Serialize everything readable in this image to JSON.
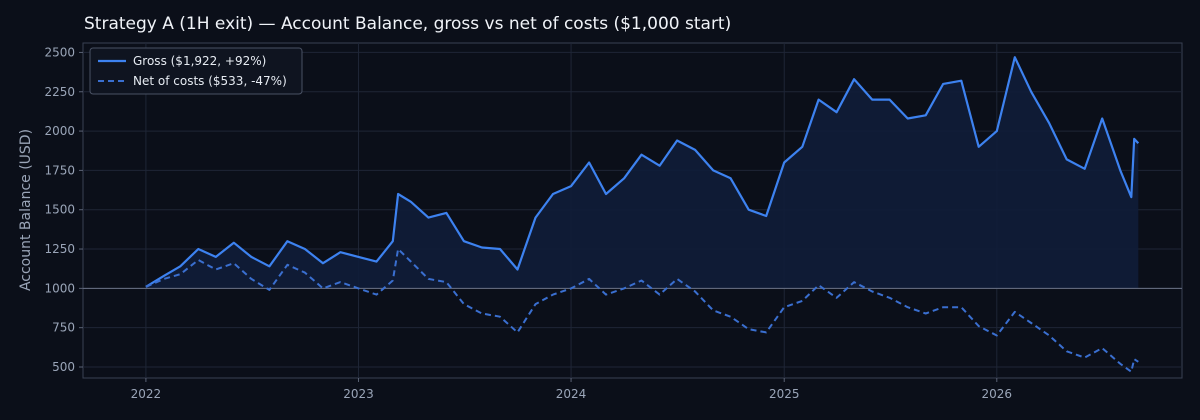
{
  "chart_data": {
    "type": "line",
    "title": "Strategy A (1H exit) — Account Balance, gross vs net of costs ($1,000 start)",
    "xlabel": "",
    "ylabel": "Account Balance (USD)",
    "xlim": [
      "2021-09-15",
      "2026-11-15"
    ],
    "ylim": [
      430,
      2560
    ],
    "x_ticks": [
      "2022",
      "2023",
      "2024",
      "2025",
      "2026"
    ],
    "y_ticks": [
      500,
      750,
      1000,
      1250,
      1500,
      1750,
      2000,
      2250,
      2500
    ],
    "baseline": 1000,
    "grid": true,
    "legend": "top-left",
    "colors": {
      "gross": "#3d82f0",
      "net": "#3a6fd0",
      "background": "#0b0f19",
      "fill": "#0f1d38"
    },
    "series": [
      {
        "name": "Gross ($1,922, +92%)",
        "style": "solid",
        "x": [
          "2022-01-01",
          "2022-02-01",
          "2022-03-01",
          "2022-04-01",
          "2022-05-01",
          "2022-06-01",
          "2022-07-01",
          "2022-08-01",
          "2022-09-01",
          "2022-10-01",
          "2022-11-01",
          "2022-12-01",
          "2023-01-01",
          "2023-02-01",
          "2023-03-01",
          "2023-03-10",
          "2023-04-01",
          "2023-05-01",
          "2023-06-01",
          "2023-07-01",
          "2023-08-01",
          "2023-09-01",
          "2023-10-01",
          "2023-11-01",
          "2023-12-01",
          "2024-01-01",
          "2024-02-01",
          "2024-03-01",
          "2024-04-01",
          "2024-05-01",
          "2024-06-01",
          "2024-07-01",
          "2024-08-01",
          "2024-09-01",
          "2024-10-01",
          "2024-11-01",
          "2024-12-01",
          "2025-01-01",
          "2025-02-01",
          "2025-03-01",
          "2025-04-01",
          "2025-05-01",
          "2025-06-01",
          "2025-07-01",
          "2025-08-01",
          "2025-09-01",
          "2025-10-01",
          "2025-11-01",
          "2025-12-01",
          "2026-01-01",
          "2026-02-01",
          "2026-03-01",
          "2026-04-01",
          "2026-05-01",
          "2026-06-01",
          "2026-07-01",
          "2026-08-01",
          "2026-08-20",
          "2026-08-25",
          "2026-09-01"
        ],
        "values": [
          1010,
          1080,
          1140,
          1250,
          1200,
          1290,
          1200,
          1140,
          1300,
          1250,
          1160,
          1230,
          1200,
          1170,
          1300,
          1600,
          1550,
          1450,
          1480,
          1300,
          1260,
          1250,
          1120,
          1450,
          1600,
          1650,
          1800,
          1600,
          1700,
          1850,
          1780,
          1940,
          1880,
          1750,
          1700,
          1500,
          1460,
          1800,
          1900,
          2200,
          2120,
          2330,
          2200,
          2200,
          2080,
          2100,
          2300,
          2320,
          1900,
          2000,
          2470,
          2250,
          2050,
          1820,
          1760,
          2080,
          1750,
          1580,
          1950,
          1922
        ]
      },
      {
        "name": "Net of costs ($533, -47%)",
        "style": "dashed",
        "x": [
          "2022-01-01",
          "2022-02-01",
          "2022-03-01",
          "2022-04-01",
          "2022-05-01",
          "2022-06-01",
          "2022-07-01",
          "2022-08-01",
          "2022-09-01",
          "2022-10-01",
          "2022-11-01",
          "2022-12-01",
          "2023-01-01",
          "2023-02-01",
          "2023-03-01",
          "2023-03-10",
          "2023-04-01",
          "2023-05-01",
          "2023-06-01",
          "2023-07-01",
          "2023-08-01",
          "2023-09-01",
          "2023-10-01",
          "2023-11-01",
          "2023-12-01",
          "2024-01-01",
          "2024-02-01",
          "2024-03-01",
          "2024-04-01",
          "2024-05-01",
          "2024-06-01",
          "2024-07-01",
          "2024-08-01",
          "2024-09-01",
          "2024-10-01",
          "2024-11-01",
          "2024-12-01",
          "2025-01-01",
          "2025-02-01",
          "2025-03-01",
          "2025-04-01",
          "2025-05-01",
          "2025-06-01",
          "2025-07-01",
          "2025-08-01",
          "2025-09-01",
          "2025-10-01",
          "2025-11-01",
          "2025-12-01",
          "2026-01-01",
          "2026-02-01",
          "2026-03-01",
          "2026-04-01",
          "2026-05-01",
          "2026-06-01",
          "2026-07-01",
          "2026-08-01",
          "2026-08-20",
          "2026-08-25",
          "2026-09-01"
        ],
        "values": [
          1010,
          1060,
          1090,
          1180,
          1120,
          1160,
          1060,
          990,
          1150,
          1100,
          1000,
          1040,
          1000,
          960,
          1050,
          1250,
          1170,
          1060,
          1040,
          900,
          840,
          820,
          720,
          900,
          960,
          1000,
          1060,
          960,
          1000,
          1050,
          960,
          1060,
          980,
          860,
          820,
          740,
          720,
          880,
          920,
          1020,
          940,
          1040,
          980,
          940,
          880,
          840,
          880,
          880,
          760,
          700,
          850,
          780,
          700,
          600,
          560,
          620,
          520,
          470,
          550,
          533
        ]
      }
    ]
  }
}
